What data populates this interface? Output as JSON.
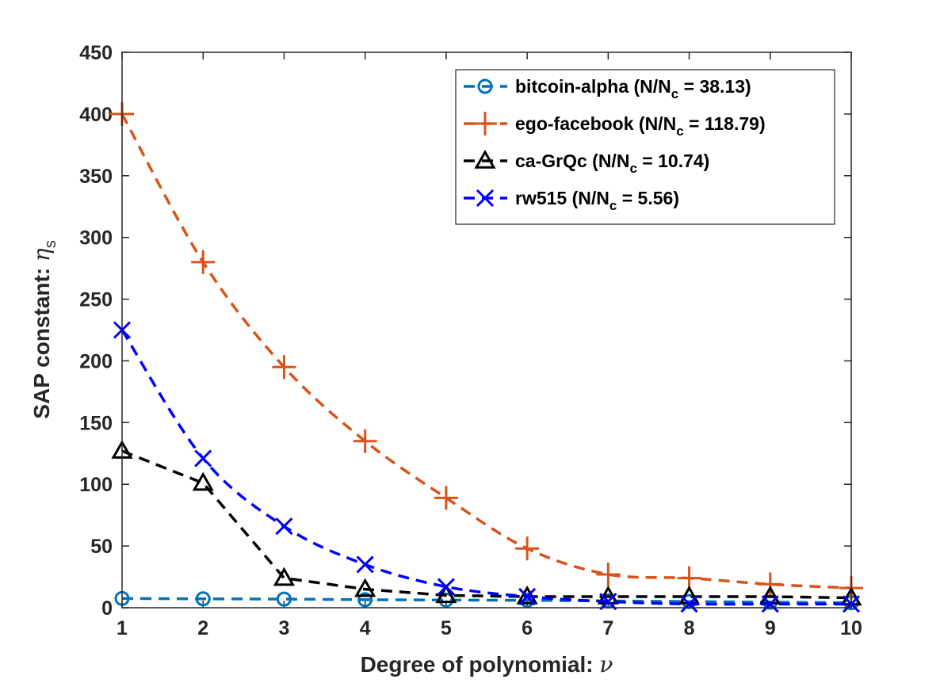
{
  "chart_data": {
    "type": "line",
    "title": "",
    "xlabel": "Degree of polynomial: ",
    "xlabel_symbol": "ν",
    "ylabel": "SAP constant: ",
    "ylabel_symbol": "η",
    "ylabel_subscript": "s",
    "xlim": [
      1,
      10
    ],
    "ylim": [
      0,
      450
    ],
    "x_ticks": [
      1,
      2,
      3,
      4,
      5,
      6,
      7,
      8,
      9,
      10
    ],
    "y_ticks": [
      0,
      50,
      100,
      150,
      200,
      250,
      300,
      350,
      400,
      450
    ],
    "x": [
      1,
      2,
      3,
      4,
      5,
      6,
      7,
      8,
      9,
      10
    ],
    "legend_position": "top-right",
    "series": [
      {
        "name": "bitcoin-alpha",
        "legend_prefix": "bitcoin-alpha (N/N",
        "legend_sub": "c",
        "legend_suffix": " = 38.13)",
        "color": "#0072BD",
        "marker": "circle",
        "values": [
          7.5,
          7.2,
          7.0,
          6.5,
          6.2,
          6.0,
          5.5,
          5.0,
          4.5,
          4.0
        ]
      },
      {
        "name": "ego-facebook",
        "legend_prefix": "ego-facebook (N/N",
        "legend_sub": "c",
        "legend_suffix": " = 118.79)",
        "color": "#D95319",
        "marker": "plus",
        "values": [
          400,
          280,
          195,
          135,
          89,
          48,
          27,
          24,
          19,
          16
        ]
      },
      {
        "name": "ca-GrQc",
        "legend_prefix": "ca-GrQc (N/N",
        "legend_sub": "c",
        "legend_suffix": " = 10.74)",
        "color": "#000000",
        "marker": "triangle",
        "values": [
          127,
          101,
          24,
          15,
          10,
          9,
          9,
          9,
          9,
          8
        ]
      },
      {
        "name": "rw515",
        "legend_prefix": "rw515 (N/N",
        "legend_sub": "c",
        "legend_suffix": " = 5.56)",
        "color": "#0000FF",
        "marker": "x",
        "values": [
          225,
          121,
          66,
          35,
          17,
          9,
          5,
          3,
          3,
          3
        ]
      }
    ]
  }
}
